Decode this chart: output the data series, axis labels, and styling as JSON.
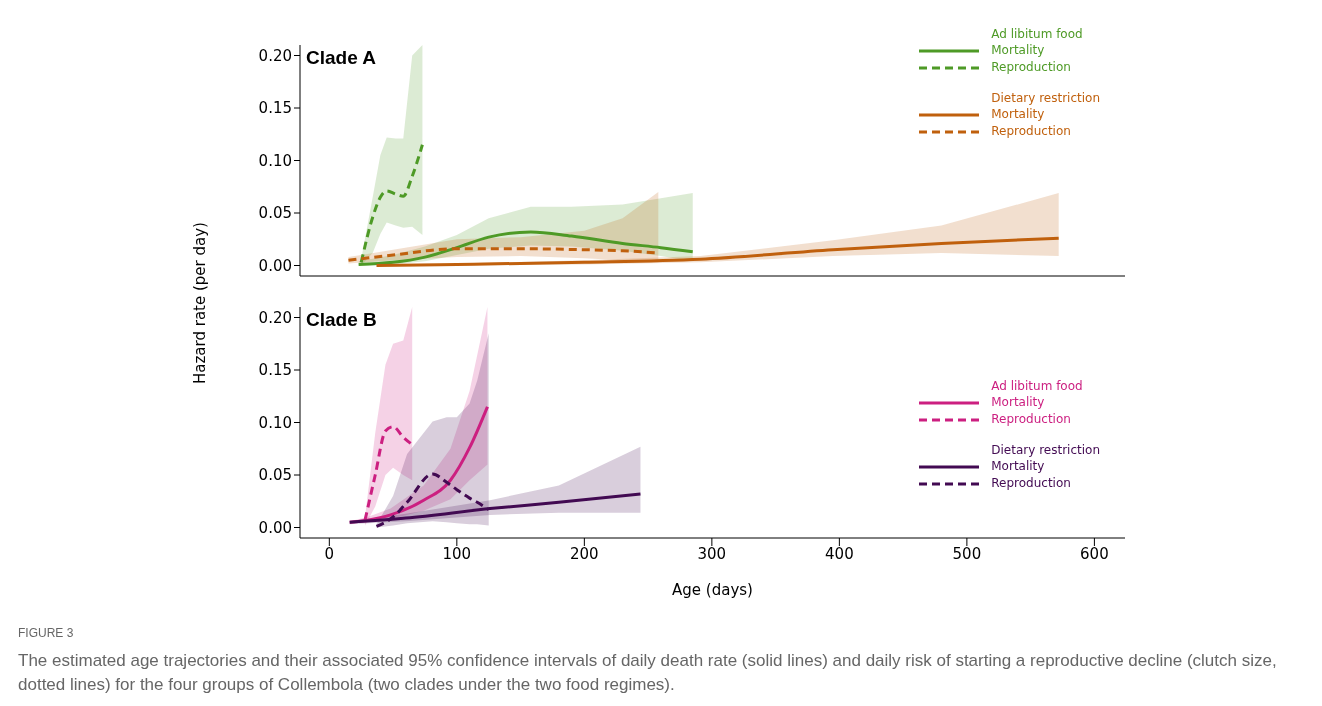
{
  "chart_data": [
    {
      "type": "line",
      "title": "Clade A",
      "ylabel": "Hazard rate (per day)",
      "xlim": [
        -23,
        624
      ],
      "xticks": [
        0,
        100,
        200,
        300,
        400,
        500,
        600
      ],
      "ylim": [
        -0.01,
        0.21
      ],
      "yticks": [
        {
          "value": 0,
          "label": "0.00"
        },
        {
          "value": 0.05,
          "label": "0.05"
        },
        {
          "value": 0.1,
          "label": "0.10"
        },
        {
          "value": 0.15,
          "label": "0.15"
        },
        {
          "value": 0.2,
          "label": "0.20"
        }
      ],
      "tick_labels": "y",
      "grid": false,
      "legend": "top right",
      "marker": "none",
      "annotations": [
        "Ad libitum food",
        "Dietary restriction"
      ],
      "series": [
        {
          "name": "Mortality",
          "color": "#4e9a26",
          "line_style": "solid",
          "x": [
            23,
            50,
            75,
            100,
            125,
            158,
            190,
            230,
            260,
            285
          ],
          "values": [
            0.001,
            0.003,
            0.008,
            0.017,
            0.027,
            0.032,
            0.028,
            0.021,
            0.017,
            0.013
          ],
          "lower": [
            0,
            0.001,
            0.004,
            0.01,
            0.016,
            0.019,
            0.018,
            0.014,
            0.009,
            0.004
          ],
          "upper": [
            0.004,
            0.01,
            0.018,
            0.029,
            0.045,
            0.056,
            0.056,
            0.058,
            0.064,
            0.069
          ]
        },
        {
          "name": "Reproduction",
          "color": "#4e9a26",
          "line_style": "dashed",
          "x": [
            25,
            34,
            40,
            45,
            52,
            58,
            65,
            73
          ],
          "values": [
            0.003,
            0.046,
            0.065,
            0.071,
            0.068,
            0.066,
            0.085,
            0.115
          ],
          "lower": [
            0,
            0.012,
            0.03,
            0.041,
            0.038,
            0.036,
            0.037,
            0.029
          ],
          "upper": [
            0.006,
            0.065,
            0.105,
            0.122,
            0.121,
            0.121,
            0.2,
            0.21
          ]
        },
        {
          "name": "Mortality",
          "color": "#c0600d",
          "line_style": "solid",
          "x": [
            37,
            100,
            200,
            291,
            395,
            480,
            572
          ],
          "values": [
            0,
            0.001,
            0.003,
            0.006,
            0.015,
            0.021,
            0.026
          ],
          "lower": [
            0,
            0,
            0.001,
            0.003,
            0.009,
            0.012,
            0.009
          ],
          "upper": [
            0.001,
            0.002,
            0.005,
            0.009,
            0.024,
            0.038,
            0.069
          ]
        },
        {
          "name": "Reproduction",
          "color": "#c0600d",
          "line_style": "dashed",
          "x": [
            15,
            50,
            100,
            150,
            200,
            230,
            258
          ],
          "values": [
            0.005,
            0.01,
            0.016,
            0.016,
            0.015,
            0.014,
            0.012
          ],
          "lower": [
            0.002,
            0.005,
            0.008,
            0.009,
            0.007,
            0.005,
            0.003
          ],
          "upper": [
            0.008,
            0.015,
            0.025,
            0.027,
            0.033,
            0.045,
            0.07
          ]
        }
      ]
    },
    {
      "type": "line",
      "title": "Clade B",
      "xlabel": "Age (days)",
      "xlim": [
        -23,
        624
      ],
      "xticks": [
        0,
        100,
        200,
        300,
        400,
        500,
        600
      ],
      "ylim": [
        -0.01,
        0.21
      ],
      "yticks": [
        {
          "value": 0,
          "label": "0.00"
        },
        {
          "value": 0.05,
          "label": "0.05"
        },
        {
          "value": 0.1,
          "label": "0.10"
        },
        {
          "value": 0.15,
          "label": "0.15"
        },
        {
          "value": 0.2,
          "label": "0.20"
        }
      ],
      "grid": false,
      "legend": "right",
      "marker": "none",
      "annotations": [
        "Ad libitum food",
        "Dietary restriction",
        "FIGURE 3",
        "The estimated age trajectories and their associated 95% confidence intervals of daily death rate (solid lines) and daily risk of starting a reproductive decline (clutch size, dotted lines) for the four groups of Collembola (two clades under the two food regimes)."
      ],
      "series": [
        {
          "name": "Mortality",
          "color": "#cc1f80",
          "line_style": "solid",
          "x": [
            16,
            30,
            48,
            74,
            95,
            110,
            124
          ],
          "values": [
            0.005,
            0.007,
            0.012,
            0.026,
            0.045,
            0.076,
            0.115
          ],
          "lower": [
            0.004,
            0.005,
            0.008,
            0.016,
            0.027,
            0.045,
            0.06
          ],
          "upper": [
            0.006,
            0.01,
            0.018,
            0.04,
            0.075,
            0.13,
            0.21
          ]
        },
        {
          "name": "Reproduction",
          "color": "#cc1f80",
          "line_style": "dashed",
          "x": [
            28,
            36,
            44,
            50,
            58,
            65
          ],
          "values": [
            0.007,
            0.05,
            0.092,
            0.096,
            0.086,
            0.079
          ],
          "lower": [
            0.002,
            0.02,
            0.05,
            0.057,
            0.05,
            0.045
          ],
          "upper": [
            0.01,
            0.09,
            0.155,
            0.175,
            0.178,
            0.21
          ]
        },
        {
          "name": "Mortality",
          "color": "#420a52",
          "line_style": "solid",
          "x": [
            16,
            60,
            126,
            180,
            244
          ],
          "values": [
            0.005,
            0.009,
            0.018,
            0.024,
            0.032
          ],
          "lower": [
            0.003,
            0.006,
            0.012,
            0.014,
            0.014
          ],
          "upper": [
            0.006,
            0.013,
            0.026,
            0.04,
            0.077
          ]
        },
        {
          "name": "Reproduction",
          "color": "#420a52",
          "line_style": "dashed",
          "x": [
            37,
            50,
            61,
            81,
            92,
            100,
            110,
            116,
            125
          ],
          "values": [
            0.001,
            0.01,
            0.024,
            0.051,
            0.043,
            0.036,
            0.028,
            0.024,
            0.017
          ],
          "lower": [
            0,
            0.002,
            0.004,
            0.006,
            0.005,
            0.004,
            0.003,
            0.003,
            0.002
          ],
          "upper": [
            0.003,
            0.03,
            0.07,
            0.101,
            0.105,
            0.105,
            0.118,
            0.14,
            0.185
          ]
        }
      ]
    }
  ]
}
